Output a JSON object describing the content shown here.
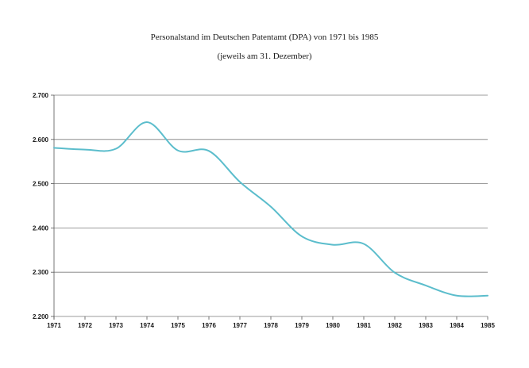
{
  "chart_data": {
    "type": "line",
    "title": "Personalstand im Deutschen Patentamt (DPA) von 1971 bis 1985",
    "subtitle": "(jeweils am 31. Dezember)",
    "xlabel": "",
    "ylabel": "",
    "categories": [
      "1971",
      "1972",
      "1973",
      "1974",
      "1975",
      "1976",
      "1977",
      "1978",
      "1979",
      "1980",
      "1981",
      "1982",
      "1983",
      "1984",
      "1985"
    ],
    "values": [
      2581,
      2577,
      2579,
      2639,
      2575,
      2574,
      2504,
      2448,
      2381,
      2362,
      2364,
      2299,
      2270,
      2247,
      2247
    ],
    "y_tick_labels": [
      "2.200",
      "2.300",
      "2.400",
      "2.500",
      "2.600",
      "2.700"
    ],
    "ylim": [
      2200,
      2700
    ],
    "y_ticks": [
      2200,
      2300,
      2400,
      2500,
      2600,
      2700
    ],
    "grid": true,
    "legend": "none",
    "colors": {
      "line": "#5bbdcc",
      "grid": "#7a7a7a",
      "text": "#1a1a1a"
    }
  }
}
